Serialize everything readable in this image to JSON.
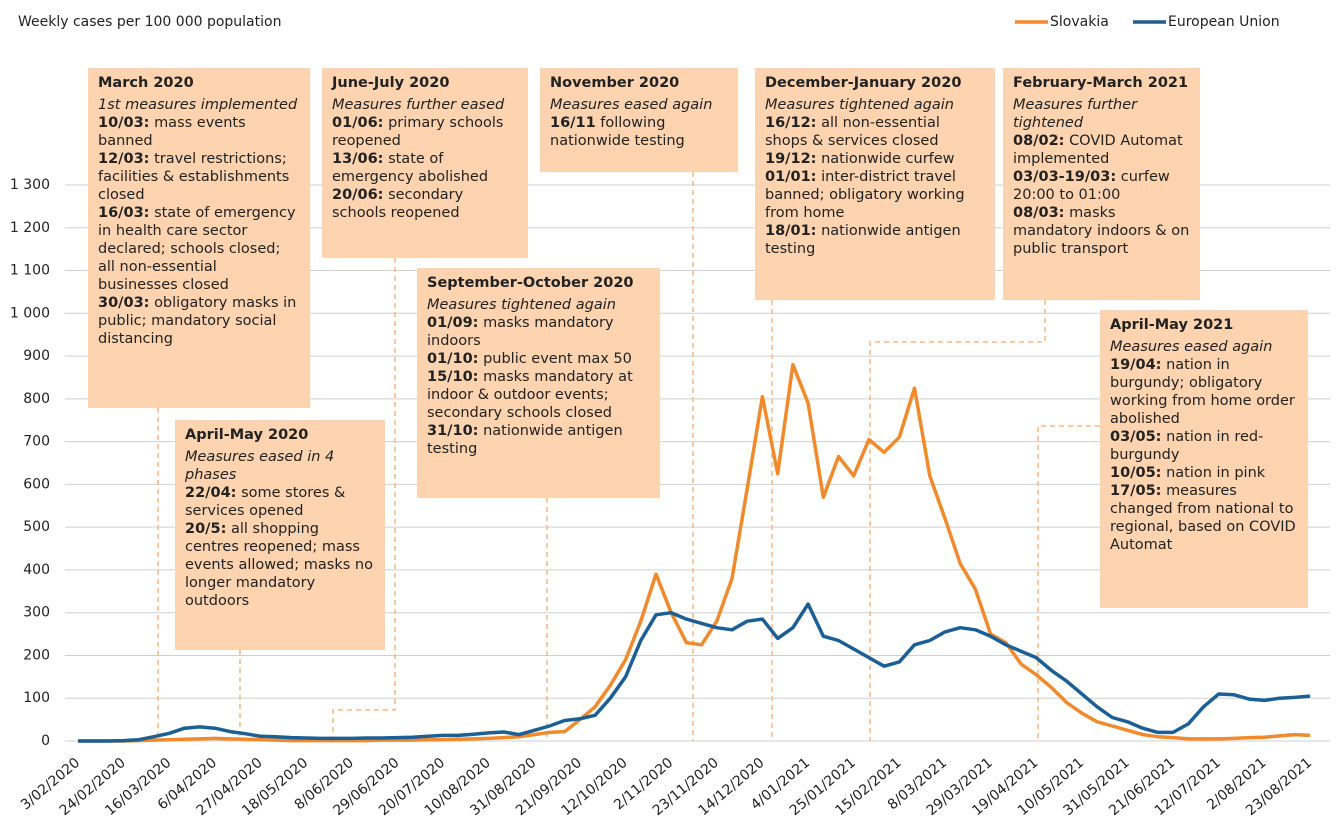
{
  "chart_data": {
    "type": "line",
    "title": "Weekly cases per 100 000 population",
    "categories": [
      "3/02/2020",
      null,
      null,
      "24/02/2020",
      null,
      null,
      "16/03/2020",
      null,
      null,
      "6/04/2020",
      null,
      null,
      "27/04/2020",
      null,
      null,
      "18/05/2020",
      null,
      null,
      "8/06/2020",
      null,
      null,
      "29/06/2020",
      null,
      null,
      "20/07/2020",
      null,
      null,
      "10/08/2020",
      null,
      null,
      "31/08/2020",
      null,
      null,
      "21/09/2020",
      null,
      null,
      "12/10/2020",
      null,
      null,
      "2/11/2020",
      null,
      null,
      "23/11/2020",
      null,
      null,
      "14/12/2020",
      null,
      null,
      "4/01/2021",
      null,
      null,
      "25/01/2021",
      null,
      null,
      "15/02/2021",
      null,
      null,
      "8/03/2021",
      null,
      null,
      "29/03/2021",
      null,
      null,
      "19/04/2021",
      null,
      null,
      "10/05/2021",
      null,
      null,
      "31/05/2021",
      null,
      null,
      "21/06/2021",
      null,
      null,
      "12/07/2021",
      null,
      null,
      "2/08/2021",
      null,
      null,
      "23/08/2021"
    ],
    "series": [
      {
        "name": "Slovakia",
        "color": "#f08a2c",
        "values": [
          0,
          0,
          0,
          0,
          1,
          2,
          3,
          4,
          5,
          6,
          5,
          4,
          3,
          2,
          1,
          1,
          1,
          1,
          1,
          1,
          2,
          2,
          2,
          3,
          3,
          4,
          5,
          6,
          8,
          10,
          15,
          20,
          22,
          50,
          80,
          130,
          190,
          280,
          390,
          300,
          230,
          225,
          280,
          380,
          590,
          805,
          625,
          880,
          790,
          570,
          665,
          620,
          705,
          675,
          710,
          825,
          620,
          520,
          415,
          355,
          250,
          230,
          180,
          155,
          125,
          90,
          65,
          45,
          35,
          25,
          15,
          10,
          8,
          5,
          5,
          5,
          6,
          8,
          9,
          12,
          15,
          13
        ]
      },
      {
        "name": "European Union",
        "color": "#1b5f94",
        "values": [
          0,
          0,
          0,
          1,
          3,
          10,
          18,
          30,
          33,
          30,
          22,
          17,
          11,
          10,
          8,
          7,
          6,
          6,
          6,
          7,
          7,
          8,
          9,
          11,
          13,
          13,
          16,
          19,
          21,
          15,
          25,
          35,
          48,
          52,
          60,
          100,
          150,
          235,
          295,
          300,
          285,
          275,
          265,
          260,
          280,
          285,
          240,
          265,
          320,
          245,
          235,
          215,
          195,
          175,
          185,
          225,
          235,
          255,
          265,
          260,
          245,
          225,
          210,
          195,
          165,
          140,
          110,
          80,
          55,
          45,
          30,
          20,
          20,
          40,
          80,
          110,
          108,
          98,
          95,
          100,
          102,
          105
        ]
      }
    ],
    "ylim": [
      0,
      1300
    ],
    "yticks": [
      0,
      100,
      200,
      300,
      400,
      500,
      600,
      700,
      800,
      900,
      {
        "value": 1000,
        "label": "1 000"
      },
      {
        "value": 1100,
        "label": "1 100"
      },
      {
        "value": 1200,
        "label": "1 200"
      },
      {
        "value": 1300,
        "label": "1 300"
      }
    ],
    "grid": true,
    "legend": "top-right",
    "annotations": [
      {
        "title": "March 2020",
        "subtitle": "1st measures implemented",
        "items": [
          {
            "date": "10/03:",
            "text": "mass events banned"
          },
          {
            "date": "12/03:",
            "text": "travel restrictions; facilities & establishments closed"
          },
          {
            "date": "16/03:",
            "text": "state of emergency in health care sector declared; schools closed; all non-essential businesses closed"
          },
          {
            "date": "30/03:",
            "text": "obligatory masks in public; mandatory social distancing"
          }
        ]
      },
      {
        "title": "April-May 2020",
        "subtitle": "Measures eased in 4 phases",
        "items": [
          {
            "date": "22/04:",
            "text": "some stores & services opened"
          },
          {
            "date": "20/5:",
            "text": "all shopping centres reopened; mass events allowed; masks no longer mandatory outdoors"
          }
        ]
      },
      {
        "title": "June-July 2020",
        "subtitle": "Measures further eased",
        "items": [
          {
            "date": "01/06:",
            "text": "primary schools reopened"
          },
          {
            "date": "13/06:",
            "text": "state of emergency abolished"
          },
          {
            "date": "20/06:",
            "text": "secondary schools reopened"
          }
        ]
      },
      {
        "title": "September-October 2020",
        "subtitle": "Measures tightened again",
        "items": [
          {
            "date": "01/09:",
            "text": "masks mandatory indoors"
          },
          {
            "date": "01/10:",
            "text": "public event max 50"
          },
          {
            "date": "15/10:",
            "text": "masks mandatory at indoor & outdoor events; secondary schools closed"
          },
          {
            "date": "31/10:",
            "text": "nationwide antigen testing"
          }
        ]
      },
      {
        "title": "November 2020",
        "subtitle": "Measures eased again",
        "items": [
          {
            "date": "16/11",
            "text": "following nationwide testing"
          }
        ]
      },
      {
        "title": "December-January 2020",
        "subtitle": "Measures tightened again",
        "items": [
          {
            "date": "16/12:",
            "text": "all non-essential shops & services closed"
          },
          {
            "date": "19/12:",
            "text": "nationwide curfew"
          },
          {
            "date": "01/01:",
            "text": "inter-district travel banned; obligatory working from home"
          },
          {
            "date": "18/01:",
            "text": "nationwide antigen testing"
          }
        ]
      },
      {
        "title": "February-March 2021",
        "subtitle": "Measures further tightened",
        "items": [
          {
            "date": "08/02:",
            "text": "COVID Automat implemented"
          },
          {
            "date": "03/03-19/03:",
            "text": "curfew 20:00 to 01:00"
          },
          {
            "date": "08/03:",
            "text": "masks mandatory indoors & on public transport"
          }
        ]
      },
      {
        "title": "April-May 2021",
        "subtitle": "Measures eased again",
        "items": [
          {
            "date": "19/04:",
            "text": "nation in burgundy; obligatory working from home order abolished"
          },
          {
            "date": "03/05:",
            "text": "nation in red-burgundy"
          },
          {
            "date": "10/05:",
            "text": "nation in pink"
          },
          {
            "date": "17/05:",
            "text": "measures changed from national to regional, based on COVID Automat"
          }
        ]
      }
    ]
  }
}
